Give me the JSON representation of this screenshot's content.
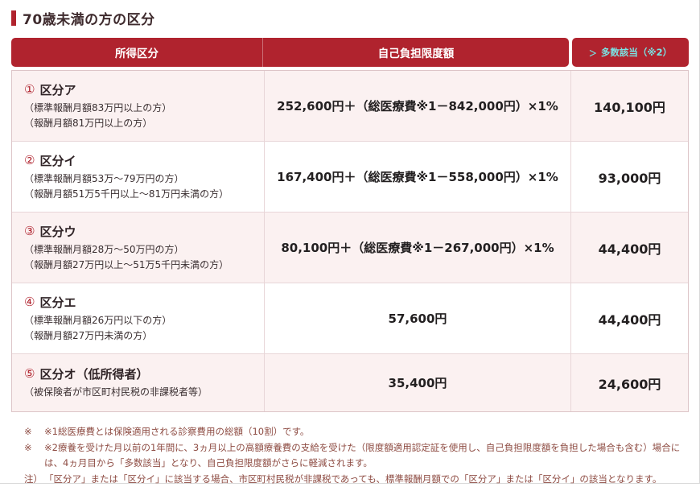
{
  "page": {
    "title": "70歳未満の方の区分",
    "accent_color": "#b0232e",
    "header_bg": "#b0232e",
    "alt_row_bg": "#fbf1f1",
    "multiple_header_color": "#79e3e3"
  },
  "table": {
    "header": {
      "income": "所得区分",
      "limit": "自己負担限度額",
      "multiple_arrow": "＞",
      "multiple": "多数該当（※2）"
    },
    "rows": [
      {
        "num": "①",
        "name": "区分ア",
        "details": [
          "（標準報酬月額83万円以上の方）",
          "（報酬月額81万円以上の方）"
        ],
        "limit": "252,600円＋（総医療費※1－842,000円）×1%",
        "multiple": "140,100円"
      },
      {
        "num": "②",
        "name": "区分イ",
        "details": [
          "（標準報酬月額53万～79万円の方）",
          "（報酬月額51万5千円以上～81万円未満の方）"
        ],
        "limit": "167,400円＋（総医療費※1－558,000円）×1%",
        "multiple": "93,000円"
      },
      {
        "num": "③",
        "name": "区分ウ",
        "details": [
          "（標準報酬月額28万～50万円の方）",
          "（報酬月額27万円以上～51万5千円未満の方）"
        ],
        "limit": "80,100円＋（総医療費※1－267,000円）×1%",
        "multiple": "44,400円"
      },
      {
        "num": "④",
        "name": "区分エ",
        "details": [
          "（標準報酬月額26万円以下の方）",
          "（報酬月額27万円未満の方）"
        ],
        "limit": "57,600円",
        "multiple": "44,400円"
      },
      {
        "num": "⑤",
        "name": "区分オ（低所得者）",
        "details": [
          "（被保険者が市区町村民税の非課税者等）"
        ],
        "limit": "35,400円",
        "multiple": "24,600円"
      }
    ]
  },
  "notes": [
    {
      "marker": "※",
      "text": "※1総医療費とは保険適用される診察費用の総額（10割）です。"
    },
    {
      "marker": "※",
      "text": "※2療養を受けた月以前の1年間に、3ヵ月以上の高額療養費の支給を受けた（限度額適用認定証を使用し、自己負担限度額を負担した場合も含む）場合には、4ヵ月目から「多数該当」となり、自己負担限度額がさらに軽減されます。"
    },
    {
      "marker": "注）",
      "text": "「区分ア」または「区分イ」に該当する場合、市区町村民税が非課税であっても、標準報酬月額での「区分ア」または「区分イ」の該当となります。"
    }
  ]
}
